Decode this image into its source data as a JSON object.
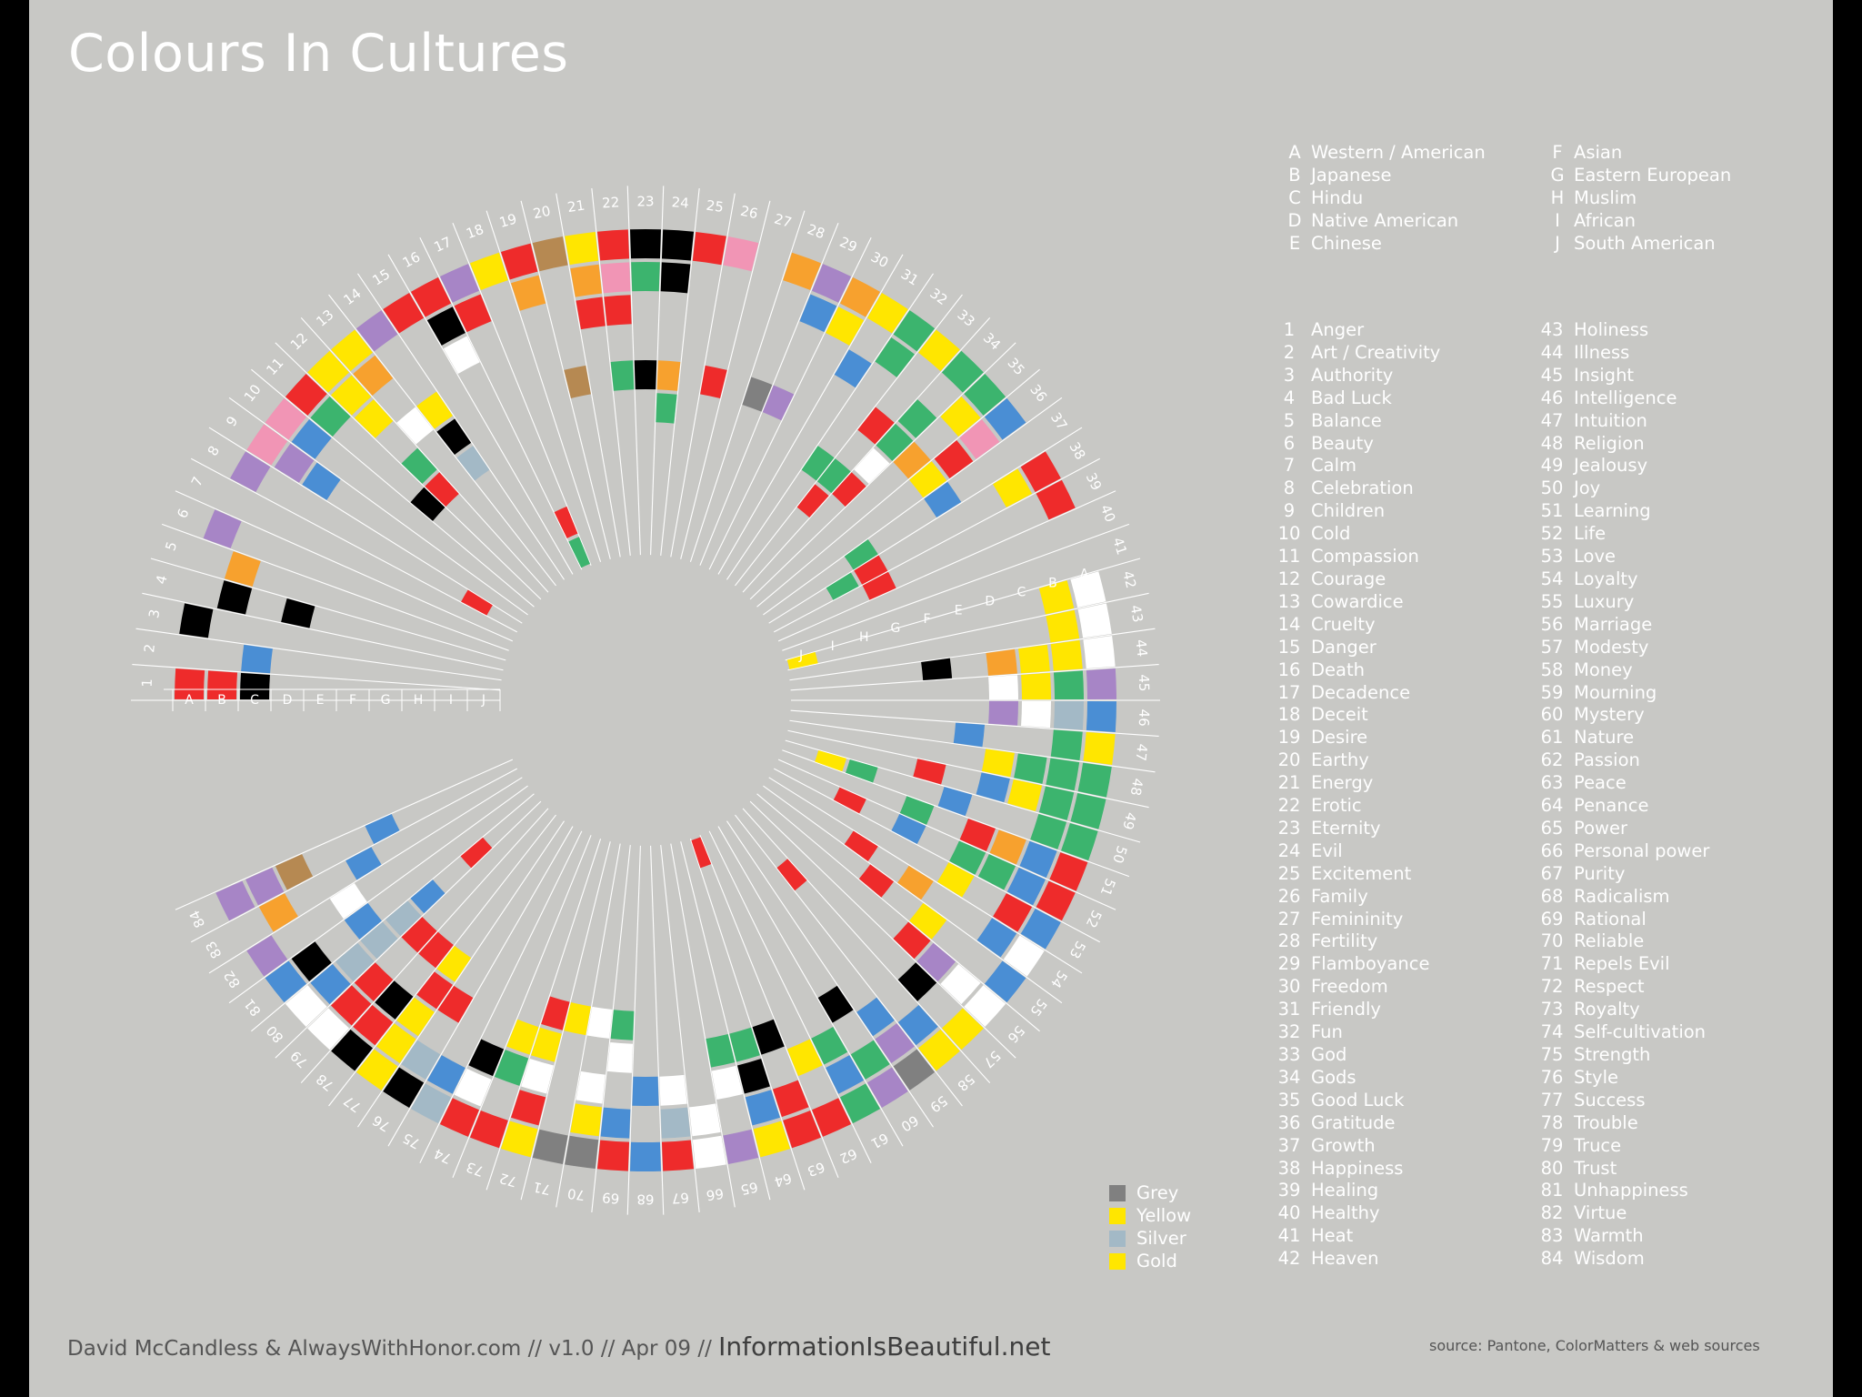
{
  "title": "Colours In Cultures",
  "credit": {
    "authors": "David McCandless & AlwaysWithHonor.com",
    "version": "// v1.0 // Apr 09 //",
    "site": "InformationIsBeautiful.net"
  },
  "source": "source: Pantone, ColorMatters & web sources",
  "cultures": [
    {
      "code": "A",
      "name": "Western / American"
    },
    {
      "code": "B",
      "name": "Japanese"
    },
    {
      "code": "C",
      "name": "Hindu"
    },
    {
      "code": "D",
      "name": "Native American"
    },
    {
      "code": "E",
      "name": "Chinese"
    },
    {
      "code": "F",
      "name": "Asian"
    },
    {
      "code": "G",
      "name": "Eastern European"
    },
    {
      "code": "H",
      "name": "Muslim"
    },
    {
      "code": "I",
      "name": "African"
    },
    {
      "code": "J",
      "name": "South American"
    }
  ],
  "meanings": [
    "Anger",
    "Art / Creativity",
    "Authority",
    "Bad Luck",
    "Balance",
    "Beauty",
    "Calm",
    "Celebration",
    "Children",
    "Cold",
    "Compassion",
    "Courage",
    "Cowardice",
    "Cruelty",
    "Danger",
    "Death",
    "Decadence",
    "Deceit",
    "Desire",
    "Earthy",
    "Energy",
    "Erotic",
    "Eternity",
    "Evil",
    "Excitement",
    "Family",
    "Femininity",
    "Fertility",
    "Flamboyance",
    "Freedom",
    "Friendly",
    "Fun",
    "God",
    "Gods",
    "Good Luck",
    "Gratitude",
    "Growth",
    "Happiness",
    "Healing",
    "Healthy",
    "Heat",
    "Heaven",
    "Holiness",
    "Illness",
    "Insight",
    "Intelligence",
    "Intuition",
    "Religion",
    "Jealousy",
    "Joy",
    "Learning",
    "Life",
    "Love",
    "Loyalty",
    "Luxury",
    "Marriage",
    "Modesty",
    "Money",
    "Mourning",
    "Mystery",
    "Nature",
    "Passion",
    "Peace",
    "Penance",
    "Power",
    "Personal power",
    "Purity",
    "Radicalism",
    "Rational",
    "Reliable",
    "Repels Evil",
    "Respect",
    "Royalty",
    "Self-cultivation",
    "Strength",
    "Style",
    "Success",
    "Trouble",
    "Truce",
    "Trust",
    "Unhappiness",
    "Virtue",
    "Warmth",
    "Wisdom"
  ],
  "metal_key": [
    {
      "label": "Grey",
      "color": "#808080"
    },
    {
      "label": "Yellow",
      "color": "#ffe600"
    },
    {
      "label": "Silver",
      "color": "#a3b9c6"
    },
    {
      "label": "Gold",
      "color": "#ffe600"
    }
  ],
  "colors": {
    "K": "#000000",
    "W": "#ffffff",
    "R": "#ee2b2b",
    "Y": "#ffe600",
    "G": "#3cb46e",
    "B": "#4a8ed4",
    "P": "#a785c6",
    "O": "#f7a12e",
    "N": "#b68952",
    "S": "#a3b9c6",
    "M": "#808080",
    "I": "#f195b5"
  },
  "chart_data": {
    "type": "radial-matrix",
    "rings": [
      "A",
      "B",
      "C",
      "D",
      "E",
      "F",
      "G",
      "H",
      "I",
      "J"
    ],
    "ring_order": "outer-to-inner",
    "color_codes": {
      "K": "Black",
      "W": "White",
      "R": "Red",
      "Y": "Yellow",
      "G": "Green",
      "B": "Blue",
      "P": "Purple",
      "O": "Orange",
      "N": "Brown",
      "S": "Silver",
      "M": "Grey",
      "I": "Pink"
    },
    "cells": {
      "1": "RRK.......",
      "2": "..B.......",
      "3": "K.........",
      "4": ".K.K......",
      "5": ".O........",
      "6": "P.........",
      "7": "..........",
      "8": "P.......R.",
      "9": "IPB.......",
      "10": "IB........",
      "11": "RG...K....",
      "12": "YYY.GR....",
      "13": "YO.W......",
      "14": "P..YKS....",
      "15": "R.........",
      "16": "RKW.......",
      "17": "PR......RG",
      "18": "Y.........",
      "19": "RO........",
      "20": "N...N.....",
      "21": "YOR.......",
      "22": "RIR.G.....",
      "23": "KG..K.....",
      "24": "KK..OG....",
      "25": "R.........",
      "26": "I...R.....",
      "27": "..........",
      "28": "O...M.....",
      "29": "PB..P.....",
      "30": "OY........",
      "31": "Y.B.......",
      "32": "GG...G....",
      "33": "Y..R.GR...",
      "34": "G.GGWR....",
      "35": "GY.O......",
      "36": "BIRY......",
      "37": "...B..G...",
      "38": "RY....RG..",
      "39": "R.....R...",
      "40": "..........",
      "41": "..........",
      "42": "WY.......Y",
      "43": "WY........",
      "44": "WYYO.K....",
      "45": "PGYW......",
      "46": "BSWP......",
      "47": "YG..B.....",
      "48": "GGGY......",
      "49": "GGYB.R....",
      "50": "GG..B..GY.",
      "51": "RBOR.G....",
      "52": "RBGG.B.R..",
      "53": "BR.Y......",
      "54": "WB..O.R...",
      "55": "B..Y.R....",
      "56": "WWPR......",
      "57": "Y.K.......",
      "58": "YB.....R..",
      "59": "MPB.......",
      "60": "PG.K......",
      "61": "GBG.......",
      "62": "R.Y.......",
      "63": "RR.K.....R",
      "64": "YBKG......",
      "65": "P.WG......",
      "66": "WW........",
      "67": "RSW.......",
      "68": "B.B.......",
      "69": "RB.WG.....",
      "70": "MYW.W.....",
      "71": "M...Y.....",
      "72": "YRWYR.....",
      "73": "R.GY......",
      "74": "RWK.......",
      "75": "SB........",
      "76": "KS.R......",
      "77": "YYYRY.....",
      "78": "KRK.R.....",
      "79": "WRR.R.....",
      "80": "WBSSSB.R..",
      "81": "BK.B......",
      "82": "P..W......",
      "83": ".O..B.....",
      "84": "PPN..B...."
    }
  }
}
